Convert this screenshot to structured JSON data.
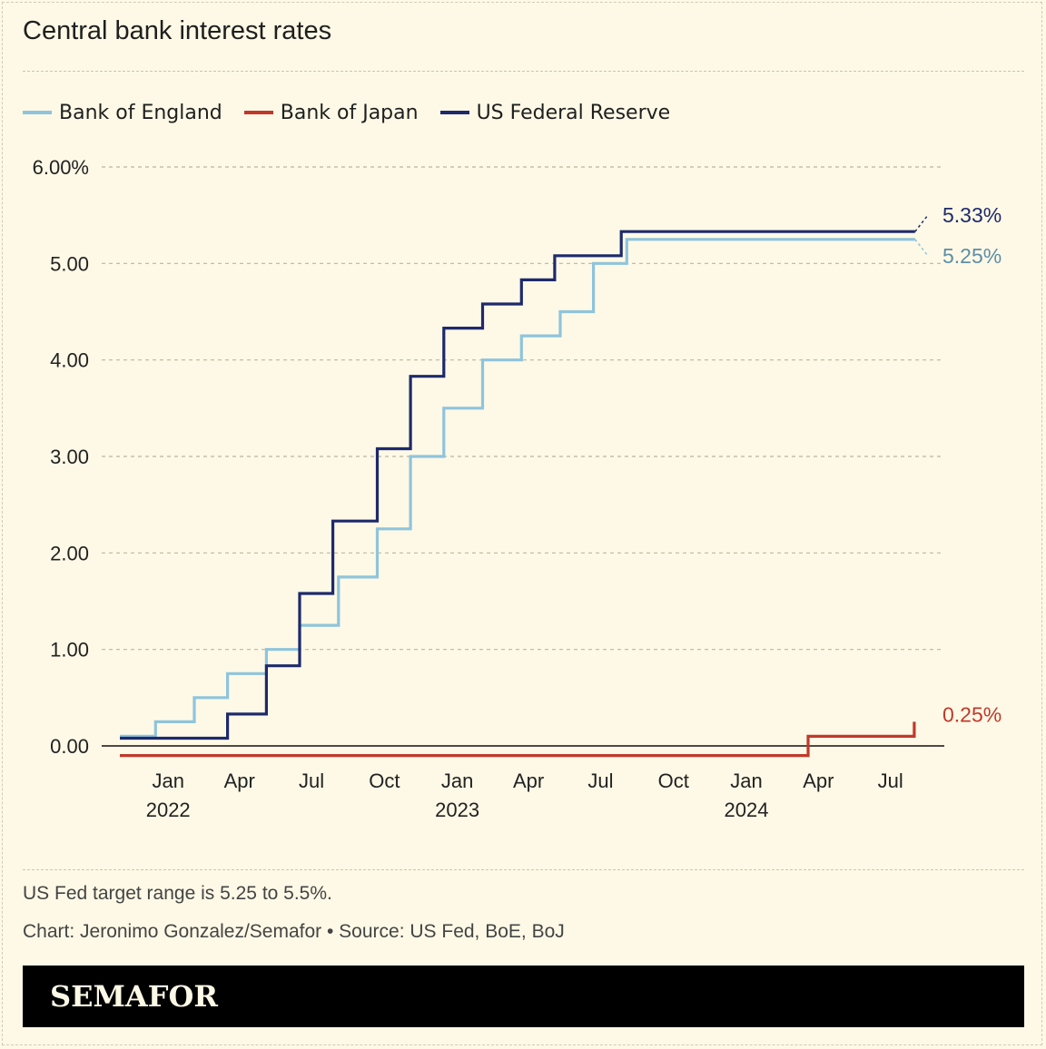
{
  "title": "Central bank interest rates",
  "note": "US Fed target range is 5.25 to 5.5%.",
  "credit": "Chart: Jeronimo Gonzalez/Semafor • Source: US Fed, BoE, BoJ",
  "brand": "SEMAFOR",
  "chart_data": {
    "type": "line",
    "title": "Central bank interest rates",
    "xlabel": "",
    "ylabel": "",
    "ylim": [
      0,
      6
    ],
    "xlim": [
      "2021-11-01",
      "2024-08-15"
    ],
    "grid": true,
    "legend_position": "top-left",
    "y_ticks": [
      {
        "value": 6,
        "label": "6.00%"
      },
      {
        "value": 5,
        "label": "5.00"
      },
      {
        "value": 4,
        "label": "4.00"
      },
      {
        "value": 3,
        "label": "3.00"
      },
      {
        "value": 2,
        "label": "2.00"
      },
      {
        "value": 1,
        "label": "1.00"
      },
      {
        "value": 0,
        "label": "0.00"
      }
    ],
    "x_ticks": [
      {
        "date": "2022-01-01",
        "label": "Jan",
        "year": "2022"
      },
      {
        "date": "2022-04-01",
        "label": "Apr",
        "year": ""
      },
      {
        "date": "2022-07-01",
        "label": "Jul",
        "year": ""
      },
      {
        "date": "2022-10-01",
        "label": "Oct",
        "year": ""
      },
      {
        "date": "2023-01-01",
        "label": "Jan",
        "year": "2023"
      },
      {
        "date": "2023-04-01",
        "label": "Apr",
        "year": ""
      },
      {
        "date": "2023-07-01",
        "label": "Jul",
        "year": ""
      },
      {
        "date": "2023-10-01",
        "label": "Oct",
        "year": ""
      },
      {
        "date": "2024-01-01",
        "label": "Jan",
        "year": "2024"
      },
      {
        "date": "2024-04-01",
        "label": "Apr",
        "year": ""
      },
      {
        "date": "2024-07-01",
        "label": "Jul",
        "year": ""
      }
    ],
    "series": [
      {
        "name": "Bank of England",
        "color": "#8fc4dc",
        "end_label": "5.25%",
        "points": [
          [
            "2021-11-01",
            0.1
          ],
          [
            "2021-12-16",
            0.25
          ],
          [
            "2022-02-03",
            0.5
          ],
          [
            "2022-03-17",
            0.75
          ],
          [
            "2022-05-05",
            1.0
          ],
          [
            "2022-06-16",
            1.25
          ],
          [
            "2022-08-04",
            1.75
          ],
          [
            "2022-09-22",
            2.25
          ],
          [
            "2022-11-03",
            3.0
          ],
          [
            "2022-12-15",
            3.5
          ],
          [
            "2023-02-02",
            4.0
          ],
          [
            "2023-03-23",
            4.25
          ],
          [
            "2023-05-11",
            4.5
          ],
          [
            "2023-06-22",
            5.0
          ],
          [
            "2023-08-03",
            5.25
          ],
          [
            "2024-08-01",
            5.25
          ]
        ]
      },
      {
        "name": "Bank of Japan",
        "color": "#c0392b",
        "end_label": "0.25%",
        "points": [
          [
            "2021-11-01",
            -0.1
          ],
          [
            "2024-03-19",
            0.1
          ],
          [
            "2024-07-31",
            0.25
          ]
        ]
      },
      {
        "name": "US Federal Reserve",
        "color": "#1e2a6b",
        "end_label": "5.33%",
        "points": [
          [
            "2021-11-01",
            0.08
          ],
          [
            "2022-03-17",
            0.33
          ],
          [
            "2022-05-05",
            0.83
          ],
          [
            "2022-06-16",
            1.58
          ],
          [
            "2022-07-28",
            2.33
          ],
          [
            "2022-09-22",
            3.08
          ],
          [
            "2022-11-03",
            3.83
          ],
          [
            "2022-12-15",
            4.33
          ],
          [
            "2023-02-02",
            4.58
          ],
          [
            "2023-03-23",
            4.83
          ],
          [
            "2023-05-04",
            5.08
          ],
          [
            "2023-07-27",
            5.33
          ],
          [
            "2024-08-01",
            5.33
          ]
        ]
      }
    ]
  }
}
